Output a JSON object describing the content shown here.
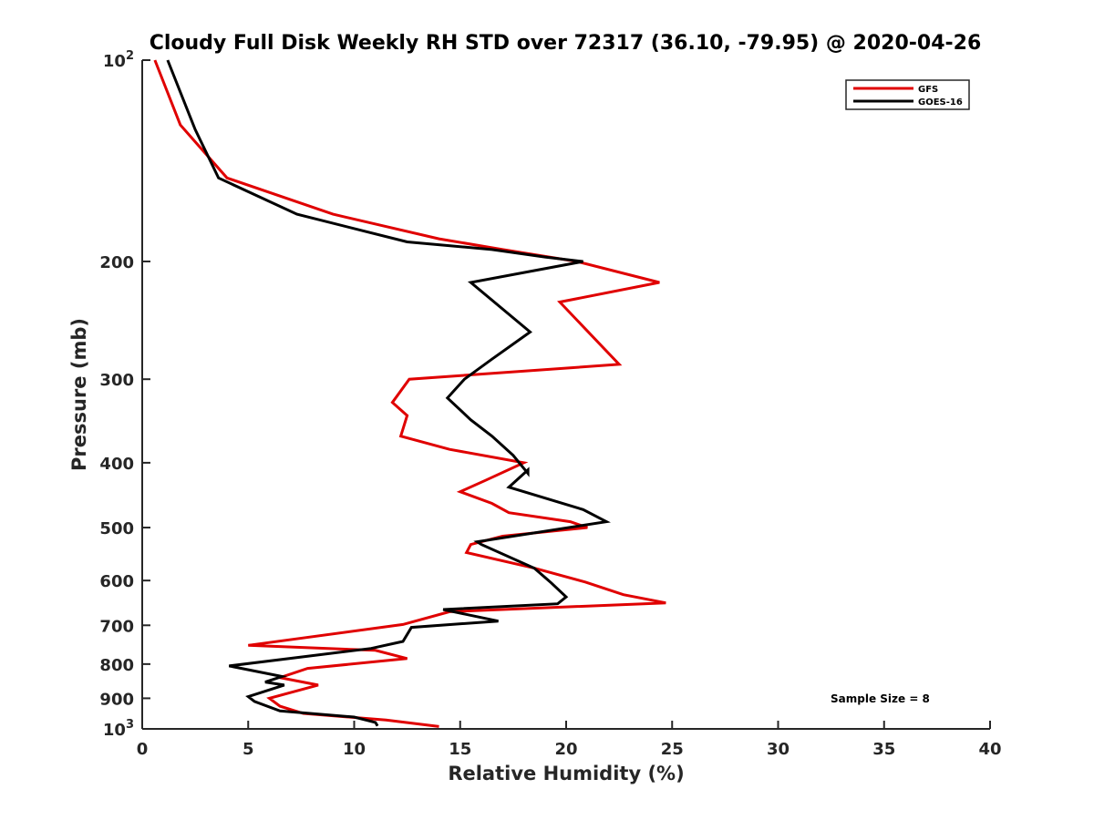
{
  "chart_data": {
    "type": "line",
    "title": "Cloudy Full Disk Weekly RH STD over 72317 (36.10, -79.95) @ 2020-04-26",
    "xlabel": "Relative Humidity (%)",
    "ylabel": "Pressure (mb)",
    "xlim": [
      0,
      40
    ],
    "ylim": [
      100,
      1000
    ],
    "y_scale": "log",
    "y_reversed": true,
    "xticks": [
      0,
      5,
      10,
      15,
      20,
      25,
      30,
      35,
      40
    ],
    "yticks": [
      {
        "value": 100,
        "base": "10",
        "exp": "2"
      },
      {
        "value": 200,
        "label": "200"
      },
      {
        "value": 300,
        "label": "300"
      },
      {
        "value": 400,
        "label": "400"
      },
      {
        "value": 500,
        "label": "500"
      },
      {
        "value": 600,
        "label": "600"
      },
      {
        "value": 700,
        "label": "700"
      },
      {
        "value": 800,
        "label": "800"
      },
      {
        "value": 900,
        "label": "900"
      },
      {
        "value": 1000,
        "base": "10",
        "exp": "3"
      }
    ],
    "grid": false,
    "legend_position": "top-right",
    "annotation": "Sample Size = 8",
    "series": [
      {
        "name": "GFS",
        "color": "#e00000",
        "points": [
          [
            0.6,
            100
          ],
          [
            1.8,
            125
          ],
          [
            4.0,
            150
          ],
          [
            9.0,
            170
          ],
          [
            14.0,
            185
          ],
          [
            17.0,
            192
          ],
          [
            20.5,
            200
          ],
          [
            24.4,
            215
          ],
          [
            19.7,
            230
          ],
          [
            22.5,
            285
          ],
          [
            12.6,
            300
          ],
          [
            11.8,
            325
          ],
          [
            12.5,
            340
          ],
          [
            12.2,
            365
          ],
          [
            14.5,
            382
          ],
          [
            18.0,
            400
          ],
          [
            16.2,
            425
          ],
          [
            15.0,
            442
          ],
          [
            16.5,
            460
          ],
          [
            17.3,
            475
          ],
          [
            20.2,
            490
          ],
          [
            21.0,
            500
          ],
          [
            17.0,
            515
          ],
          [
            15.5,
            530
          ],
          [
            15.3,
            545
          ],
          [
            18.5,
            575
          ],
          [
            20.9,
            603
          ],
          [
            22.7,
            630
          ],
          [
            24.7,
            648
          ],
          [
            14.5,
            668
          ],
          [
            12.3,
            698
          ],
          [
            5.0,
            750
          ],
          [
            11.0,
            763
          ],
          [
            12.5,
            785
          ],
          [
            7.8,
            812
          ],
          [
            6.5,
            838
          ],
          [
            8.3,
            860
          ],
          [
            6.0,
            900
          ],
          [
            6.5,
            925
          ],
          [
            7.6,
            948
          ],
          [
            11.5,
            970
          ],
          [
            14.0,
            992
          ]
        ]
      },
      {
        "name": "GOES-16",
        "color": "#000000",
        "points": [
          [
            1.2,
            100
          ],
          [
            2.5,
            127
          ],
          [
            3.6,
            150
          ],
          [
            7.3,
            170
          ],
          [
            12.5,
            187
          ],
          [
            16.5,
            192
          ],
          [
            19.0,
            197
          ],
          [
            20.8,
            200
          ],
          [
            15.5,
            215
          ],
          [
            18.3,
            255
          ],
          [
            16.5,
            280
          ],
          [
            15.2,
            300
          ],
          [
            14.4,
            320
          ],
          [
            15.5,
            345
          ],
          [
            16.5,
            365
          ],
          [
            17.5,
            390
          ],
          [
            18.2,
            415
          ],
          [
            18.2,
            410
          ],
          [
            17.3,
            435
          ],
          [
            20.8,
            470
          ],
          [
            21.9,
            490
          ],
          [
            15.8,
            525
          ],
          [
            16.0,
            530
          ],
          [
            18.5,
            575
          ],
          [
            19.3,
            605
          ],
          [
            20.0,
            635
          ],
          [
            19.6,
            650
          ],
          [
            14.2,
            663
          ],
          [
            16.8,
            690
          ],
          [
            12.7,
            705
          ],
          [
            12.3,
            740
          ],
          [
            10.8,
            758
          ],
          [
            4.1,
            805
          ],
          [
            6.6,
            835
          ],
          [
            5.8,
            851
          ],
          [
            6.7,
            860
          ],
          [
            5.0,
            895
          ],
          [
            5.3,
            910
          ],
          [
            6.5,
            940
          ],
          [
            10.0,
            960
          ],
          [
            11.0,
            978
          ],
          [
            11.1,
            990
          ]
        ]
      }
    ]
  }
}
